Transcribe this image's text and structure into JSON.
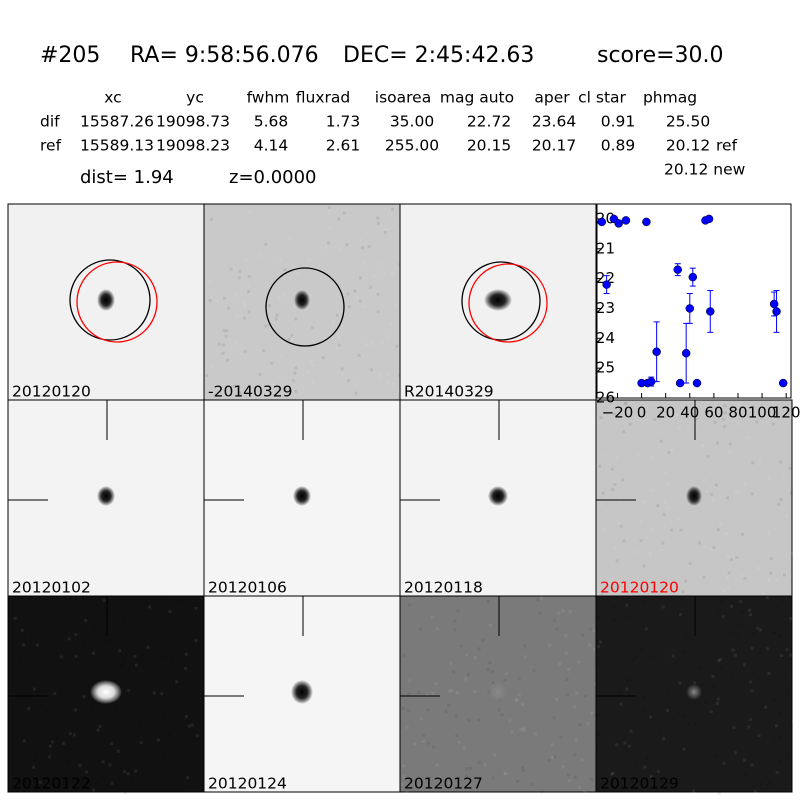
{
  "header": {
    "id": "#205",
    "ra": "RA= 9:58:56.076",
    "dec": "DEC= 2:45:42.63",
    "score": "score=30.0"
  },
  "table": {
    "columns": [
      "xc",
      "yc",
      "fwhm",
      "fluxrad",
      "isoarea",
      "mag auto",
      "aper",
      "cl star",
      "phmag"
    ],
    "rows": [
      {
        "label": "dif",
        "values": [
          "15587.26",
          "19098.73",
          "5.68",
          "1.73",
          "35.00",
          "22.72",
          "23.64",
          "0.91",
          "25.50"
        ]
      },
      {
        "label": "ref",
        "values": [
          "15589.13",
          "19098.23",
          "4.14",
          "2.61",
          "255.00",
          "20.15",
          "20.17",
          "0.89",
          "20.12"
        ],
        "suffix": "ref"
      }
    ],
    "extra": "20.12 new",
    "dist": "dist=  1.94",
    "z": "z=0.0000"
  },
  "panels": [
    {
      "label": "20120120"
    },
    {
      "label": "-20140329"
    },
    {
      "label": "R20140329"
    },
    {
      "label": null
    },
    {
      "label": "20120102"
    },
    {
      "label": "20120106"
    },
    {
      "label": "20120118"
    },
    {
      "label": "20120120",
      "color": "#ff0000"
    },
    {
      "label": "20120122"
    },
    {
      "label": "20120124"
    },
    {
      "label": "20120127"
    },
    {
      "label": "20120129"
    }
  ],
  "chart_data": {
    "type": "scatter",
    "color": "#0000ff",
    "x": [
      -33,
      -29,
      -23,
      -19,
      -13,
      0,
      4,
      5,
      8,
      12.5,
      30,
      32,
      37,
      40,
      42.5,
      46,
      53,
      56,
      57,
      110,
      112,
      117.5
    ],
    "values": [
      20.1,
      22.2,
      20.0,
      20.15,
      20.05,
      25.5,
      20.1,
      25.5,
      25.45,
      24.45,
      21.7,
      25.5,
      24.5,
      23.0,
      21.95,
      25.5,
      20.05,
      20.0,
      23.1,
      22.85,
      23.1,
      25.5
    ],
    "errors": [
      null,
      0.3,
      null,
      null,
      null,
      null,
      null,
      null,
      0.15,
      1.0,
      0.2,
      null,
      1.0,
      0.5,
      0.3,
      null,
      null,
      null,
      0.7,
      0.4,
      0.7,
      null
    ],
    "xlim": [
      -37,
      124
    ],
    "ylim": [
      19.5,
      26
    ],
    "y_inverted": true,
    "xticks": [
      {
        "value": -20,
        "label": "−20"
      },
      0,
      20,
      40,
      60,
      80,
      100,
      120
    ],
    "yticks": [
      20,
      21,
      22,
      23,
      24,
      25,
      26
    ]
  }
}
